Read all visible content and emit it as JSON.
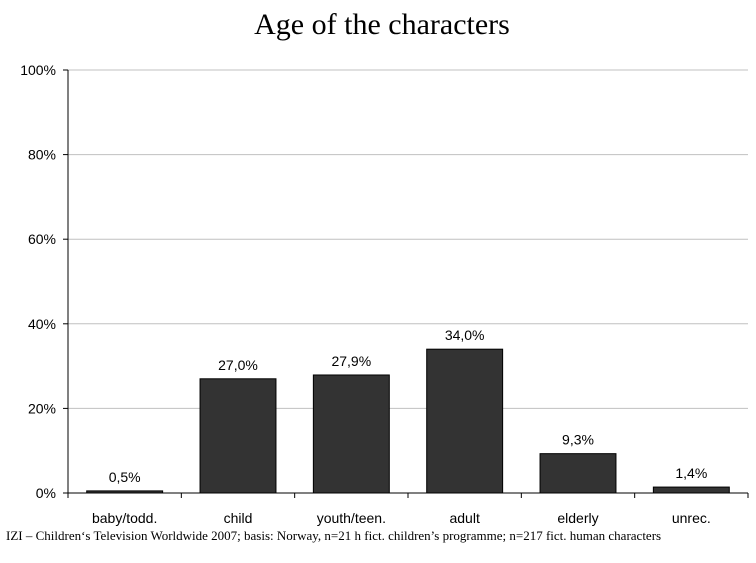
{
  "chart_data": {
    "type": "bar",
    "title": "Age of the characters",
    "xlabel": "",
    "ylabel": "",
    "categories": [
      "baby/todd.",
      "child",
      "youth/teen.",
      "adult",
      "elderly",
      "unrec."
    ],
    "values": [
      0.5,
      27.0,
      27.9,
      34.0,
      9.3,
      1.4
    ],
    "value_labels": [
      "0,5%",
      "27,0%",
      "27,9%",
      "34,0%",
      "9,3%",
      "1,4%"
    ],
    "y_ticks": [
      0,
      20,
      40,
      60,
      80,
      100
    ],
    "y_tick_labels": [
      "0%",
      "20%",
      "40%",
      "60%",
      "80%",
      "100%"
    ],
    "ylim": [
      0,
      100
    ],
    "grid": true,
    "legend": "none",
    "bar_color": "#333333"
  },
  "source_note": "IZI – Children‘s Television Worldwide 2007; basis: Norway, n=21 h fict. children’s programme; n=217 fict. human characters"
}
